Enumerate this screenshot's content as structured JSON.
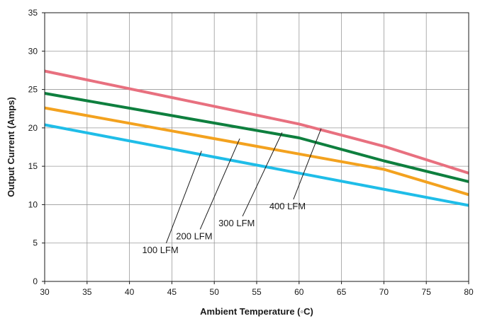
{
  "chart_data": {
    "type": "line",
    "title": "",
    "xlabel": "Ambient Temperature (◦C)",
    "ylabel": "Output Current (Amps)",
    "xlim": [
      30,
      80
    ],
    "ylim": [
      0,
      35
    ],
    "xticks": [
      30,
      35,
      40,
      45,
      50,
      55,
      60,
      65,
      70,
      75,
      80
    ],
    "yticks": [
      0,
      5,
      10,
      15,
      20,
      25,
      30,
      35
    ],
    "grid": true,
    "legend": "none",
    "series": [
      {
        "name": "400 LFM",
        "color": "#e8707f",
        "x": [
          30,
          60,
          70,
          80
        ],
        "y": [
          27.4,
          20.5,
          17.6,
          14.1
        ]
      },
      {
        "name": "300 LFM",
        "color": "#0e7f3e",
        "x": [
          30,
          60,
          70,
          80
        ],
        "y": [
          24.5,
          18.7,
          15.7,
          13.0
        ]
      },
      {
        "name": "200 LFM",
        "color": "#f3a21f",
        "x": [
          30,
          70,
          80
        ],
        "y": [
          22.6,
          14.6,
          11.3
        ]
      },
      {
        "name": "100 LFM",
        "color": "#1fbde8",
        "x": [
          30,
          80
        ],
        "y": [
          20.4,
          9.9
        ]
      }
    ],
    "annotations": [
      {
        "label": "100 LFM",
        "point": [
          48.5,
          17.0
        ],
        "text_at": [
          44.0,
          3.7
        ]
      },
      {
        "label": "200 LFM",
        "point": [
          53.0,
          18.6
        ],
        "text_at": [
          48.0,
          5.5
        ]
      },
      {
        "label": "300 LFM",
        "point": [
          58.0,
          19.4
        ],
        "text_at": [
          53.0,
          7.2
        ]
      },
      {
        "label": "400 LFM",
        "point": [
          62.6,
          19.9
        ],
        "text_at": [
          59.0,
          9.4
        ]
      }
    ]
  }
}
